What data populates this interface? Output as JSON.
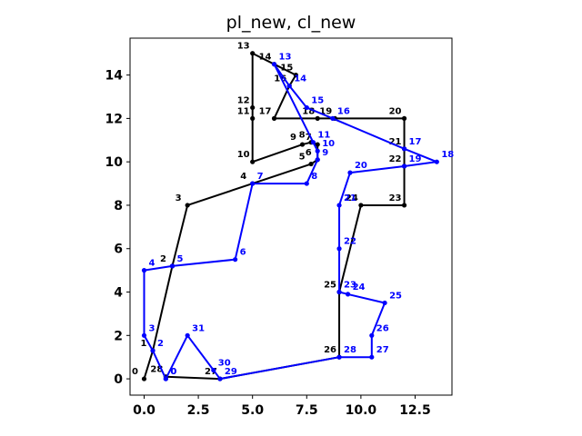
{
  "chart_data": {
    "type": "line",
    "title": "pl_new, cl_new",
    "xlabel": "",
    "ylabel": "",
    "xlim": [
      -0.65,
      14.2
    ],
    "ylim": [
      -0.75,
      15.7
    ],
    "xticks": [
      0.0,
      2.5,
      5.0,
      7.5,
      10.0,
      12.5
    ],
    "xtick_labels": [
      "0.0",
      "2.5",
      "5.0",
      "7.5",
      "10.0",
      "12.5"
    ],
    "yticks": [
      0,
      2,
      4,
      6,
      8,
      10,
      12,
      14
    ],
    "ytick_labels": [
      "0",
      "2",
      "4",
      "6",
      "8",
      "10",
      "12",
      "14"
    ],
    "grid": false,
    "series": [
      {
        "color": "#000000",
        "labels": [
          "0",
          "1",
          "2",
          "3",
          "4",
          "5",
          "6",
          "7",
          "8",
          "9",
          "10",
          "11",
          "12",
          "13",
          "14",
          "15",
          "16",
          "17",
          "18",
          "19",
          "20",
          "21",
          "22",
          "23",
          "24",
          "25",
          "26",
          "27",
          "28"
        ],
        "points": [
          [
            0.0,
            0.0
          ],
          [
            0.4,
            1.3
          ],
          [
            1.3,
            5.2
          ],
          [
            2.0,
            8.0
          ],
          [
            5.0,
            9.0
          ],
          [
            7.7,
            9.9
          ],
          [
            8.0,
            10.1
          ],
          [
            8.0,
            10.8
          ],
          [
            7.7,
            10.9
          ],
          [
            7.3,
            10.8
          ],
          [
            5.0,
            10.0
          ],
          [
            5.0,
            12.0
          ],
          [
            5.0,
            12.5
          ],
          [
            5.0,
            15.0
          ],
          [
            6.0,
            14.5
          ],
          [
            7.0,
            14.0
          ],
          [
            6.7,
            13.5
          ],
          [
            6.0,
            12.0
          ],
          [
            8.0,
            12.0
          ],
          [
            8.8,
            12.0
          ],
          [
            12.0,
            12.0
          ],
          [
            12.0,
            10.6
          ],
          [
            12.0,
            9.8
          ],
          [
            12.0,
            8.0
          ],
          [
            10.0,
            8.0
          ],
          [
            9.0,
            4.0
          ],
          [
            9.0,
            1.0
          ],
          [
            3.5,
            0.0
          ],
          [
            1.0,
            0.1
          ]
        ]
      },
      {
        "color": "#0000ff",
        "labels": [
          "0",
          "2",
          "3",
          "4",
          "5",
          "6",
          "7",
          "8",
          "9",
          "10",
          "11",
          "13",
          "14",
          "15",
          "16",
          "17",
          "18",
          "19",
          "20",
          "21",
          "22",
          "23",
          "24",
          "25",
          "26",
          "27",
          "28",
          "29",
          "30",
          "31",
          "0"
        ],
        "points": [
          [
            1.0,
            0.0
          ],
          [
            0.4,
            1.3
          ],
          [
            0.0,
            2.0
          ],
          [
            0.0,
            5.0
          ],
          [
            1.3,
            5.2
          ],
          [
            4.2,
            5.5
          ],
          [
            5.0,
            9.0
          ],
          [
            7.5,
            9.0
          ],
          [
            8.0,
            10.1
          ],
          [
            8.0,
            10.5
          ],
          [
            7.8,
            10.9
          ],
          [
            6.0,
            14.5
          ],
          [
            6.7,
            13.5
          ],
          [
            7.5,
            12.5
          ],
          [
            8.7,
            12.0
          ],
          [
            12.0,
            10.6
          ],
          [
            13.5,
            10.0
          ],
          [
            12.0,
            9.8
          ],
          [
            9.5,
            9.5
          ],
          [
            9.0,
            8.0
          ],
          [
            9.0,
            6.0
          ],
          [
            9.0,
            4.0
          ],
          [
            9.4,
            3.9
          ],
          [
            11.1,
            3.5
          ],
          [
            10.5,
            2.0
          ],
          [
            10.5,
            1.0
          ],
          [
            9.0,
            1.0
          ],
          [
            3.5,
            0.0
          ],
          [
            3.2,
            0.4
          ],
          [
            2.0,
            2.0
          ],
          [
            1.0,
            0.0
          ]
        ]
      }
    ]
  }
}
